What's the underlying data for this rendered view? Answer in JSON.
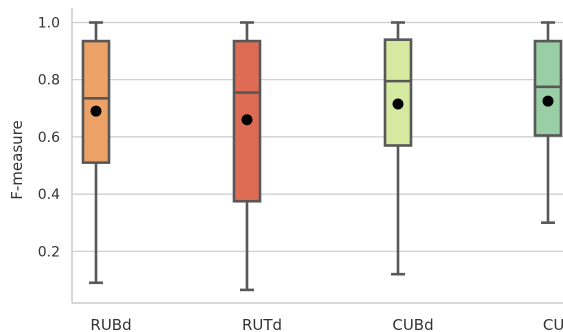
{
  "chart_data": {
    "type": "box",
    "ylabel": "F-measure",
    "xlabel": "",
    "ylim": [
      0.0,
      1.0
    ],
    "yticks": [
      "0.2",
      "0.4",
      "0.6",
      "0.8",
      "1.0"
    ],
    "grid": true,
    "categories": [
      "RUBd",
      "RUTd",
      "CUBd",
      "CUTd"
    ],
    "boxes": [
      {
        "name": "RUBd",
        "whisker_low": 0.09,
        "q1": 0.51,
        "median": 0.735,
        "q3": 0.935,
        "whisker_high": 1.0,
        "mean": 0.69,
        "color": "#eda367"
      },
      {
        "name": "RUTd",
        "whisker_low": 0.065,
        "q1": 0.375,
        "median": 0.755,
        "q3": 0.935,
        "whisker_high": 1.0,
        "mean": 0.66,
        "color": "#de6c54"
      },
      {
        "name": "CUBd",
        "whisker_low": 0.12,
        "q1": 0.57,
        "median": 0.795,
        "q3": 0.94,
        "whisker_high": 1.0,
        "mean": 0.715,
        "color": "#d6e9a0"
      },
      {
        "name": "CUTd",
        "whisker_low": 0.3,
        "q1": 0.605,
        "median": 0.775,
        "q3": 0.935,
        "whisker_high": 1.0,
        "mean": 0.725,
        "color": "#9acea5"
      }
    ]
  }
}
